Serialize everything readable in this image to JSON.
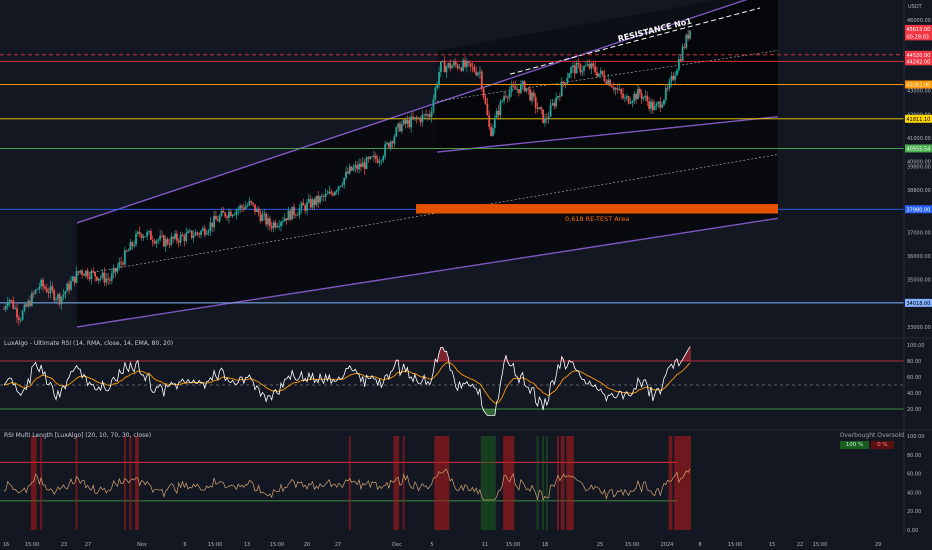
{
  "chart_data": [
    {
      "type": "candlestick",
      "pane": "price",
      "currency_label": "USDT",
      "x_ticks": [
        "16",
        "15:00",
        "23",
        "27",
        "Nov",
        "6",
        "15:00",
        "13",
        "15:00",
        "20",
        "27",
        "Dec",
        "5",
        "11",
        "15:00",
        "18",
        "25",
        "15:00",
        "2024",
        "8",
        "15:00",
        "15",
        "22",
        "15:00",
        "29"
      ],
      "y_ticks": [
        "46000.00",
        "45400.00",
        "44200.00",
        "43000.00",
        "42000.00",
        "41000.00",
        "40000.00",
        "39800.00",
        "38800.00",
        "38000.00",
        "37000.00",
        "36000.00",
        "35000.00",
        "34000.00",
        "33000.00"
      ],
      "price_badges": [
        {
          "text": "45615.00",
          "color": "#f23645"
        },
        {
          "text": "00:28:03",
          "color": "#f23645"
        },
        {
          "text": "44520.00",
          "color": "#f23645"
        },
        {
          "text": "44242.00",
          "color": "#f23645"
        },
        {
          "text": "43262.00",
          "color": "#ff9800"
        },
        {
          "text": "41811.10",
          "color": "#ffd600"
        },
        {
          "text": "40555.54",
          "color": "#4caf50"
        },
        {
          "text": "37980.00",
          "color": "#2962ff"
        },
        {
          "text": "34018.00",
          "color": "#82b1ff"
        }
      ],
      "levels": [
        {
          "value": 44520,
          "color": "#f23645",
          "style": "dashed"
        },
        {
          "value": 44242,
          "color": "#f23645",
          "style": "solid"
        },
        {
          "value": 43262,
          "color": "#ff9800",
          "style": "solid"
        },
        {
          "value": 41811,
          "color": "#ffd600",
          "style": "solid"
        },
        {
          "value": 40555,
          "color": "#4caf50",
          "style": "solid"
        },
        {
          "value": 37980,
          "color": "#2962ff",
          "style": "solid"
        },
        {
          "value": 34018,
          "color": "#82b1ff",
          "style": "solid"
        }
      ],
      "annotations": [
        {
          "text": "RESISTANCE No1",
          "color": "#ffffff"
        },
        {
          "text": "0,618 RE-TEST Area",
          "color": "#ff6d00"
        }
      ]
    },
    {
      "type": "line",
      "pane": "rsi",
      "title": "LuxAlgo - Ultimate RSI (14, RMA, close, 14, EMA, 80, 20)",
      "y_ticks": [
        "100.00",
        "80.00",
        "60.00",
        "40.00",
        "20.00"
      ],
      "overbought": 80,
      "oversold": 20
    },
    {
      "type": "area",
      "pane": "rsi_mtf",
      "title": "RSI Multi Length [LuxAlgo] (20, 10, 70, 30, close)",
      "y_ticks": [
        "100.00",
        "80.00",
        "60.00",
        "40.00",
        "20.00",
        "0.00"
      ],
      "legend_header": "Overbought Oversold",
      "legend_values": [
        {
          "text": "100 %",
          "color": "#1b5e20"
        },
        {
          "text": "0 %",
          "color": "#b71c1c"
        }
      ]
    }
  ]
}
